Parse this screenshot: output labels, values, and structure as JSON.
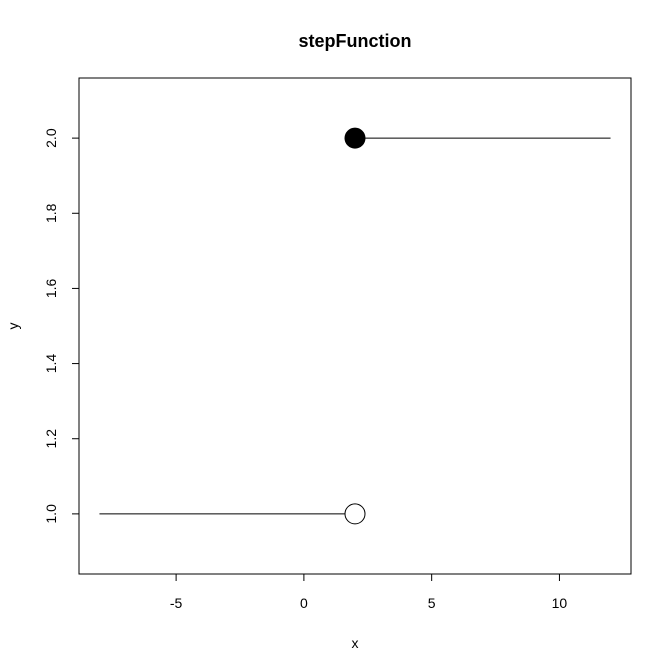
{
  "chart_data": {
    "type": "line",
    "title": "stepFunction",
    "xlabel": "x",
    "ylabel": "y",
    "xlim": [
      -8.8,
      12.8
    ],
    "ylim": [
      0.84,
      2.16
    ],
    "x_ticks": [
      -5,
      0,
      5,
      10
    ],
    "x_tick_labels": [
      "-5",
      "0",
      "5",
      "10"
    ],
    "y_ticks": [
      1.0,
      1.2,
      1.4,
      1.6,
      1.8,
      2.0
    ],
    "y_tick_labels": [
      "1.0",
      "1.2",
      "1.4",
      "1.6",
      "1.8",
      "2.0"
    ],
    "grid": false,
    "segments": [
      {
        "x": [
          -8,
          2
        ],
        "y": [
          1,
          1
        ]
      },
      {
        "x": [
          2,
          12
        ],
        "y": [
          2,
          2
        ]
      }
    ],
    "points": [
      {
        "x": 2,
        "y": 1,
        "marker": "open-circle"
      },
      {
        "x": 2,
        "y": 2,
        "marker": "filled-circle"
      }
    ],
    "colors": {
      "line": "#000000",
      "marker": "#000000",
      "background": "#ffffff"
    }
  }
}
